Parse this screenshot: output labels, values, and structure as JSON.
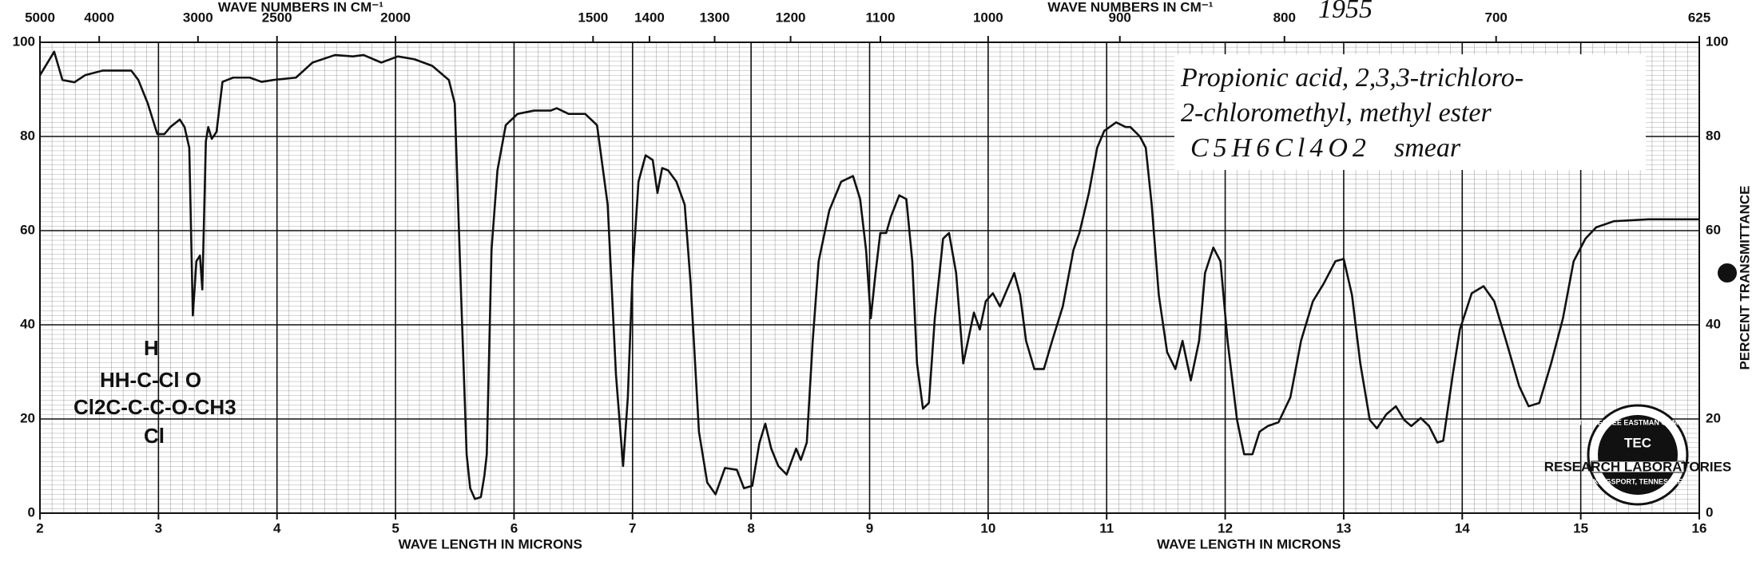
{
  "chart_data": {
    "type": "line",
    "xlabel": "WAVE LENGTH IN MICRONS",
    "ylabel": "PERCENT TRANSMITTANCE",
    "top_axis": {
      "label": "WAVE NUMBERS IN CM⁻¹",
      "ticks": [
        5000,
        4000,
        3000,
        2500,
        2000,
        1500,
        1400,
        1300,
        1200,
        1100,
        1000,
        900,
        800,
        700,
        625
      ]
    },
    "xlim": [
      2,
      16
    ],
    "ylim": [
      0,
      100
    ],
    "xticks": [
      2,
      3,
      4,
      5,
      6,
      7,
      8,
      9,
      10,
      11,
      12,
      13,
      14,
      15,
      16
    ],
    "yticks": [
      0,
      20,
      40,
      60,
      80,
      100
    ],
    "grid": true,
    "color": "#111111",
    "x": [
      2.0,
      2.12,
      2.19,
      2.29,
      2.38,
      2.53,
      2.77,
      2.83,
      2.91,
      2.99,
      3.05,
      3.1,
      3.18,
      3.22,
      3.26,
      3.29,
      3.32,
      3.35,
      3.37,
      3.4,
      3.42,
      3.45,
      3.49,
      3.54,
      3.63,
      3.77,
      3.87,
      3.97,
      4.16,
      4.3,
      4.49,
      4.64,
      4.73,
      4.88,
      5.02,
      5.16,
      5.31,
      5.45,
      5.5,
      5.55,
      5.6,
      5.63,
      5.67,
      5.72,
      5.75,
      5.77,
      5.81,
      5.86,
      5.93,
      6.03,
      6.17,
      6.31,
      6.36,
      6.46,
      6.6,
      6.7,
      6.79,
      6.86,
      6.92,
      6.96,
      7.0,
      7.05,
      7.11,
      7.17,
      7.21,
      7.25,
      7.3,
      7.37,
      7.44,
      7.49,
      7.56,
      7.63,
      7.7,
      7.78,
      7.88,
      7.94,
      8.01,
      8.07,
      8.12,
      8.17,
      8.23,
      8.3,
      8.38,
      8.42,
      8.47,
      8.52,
      8.57,
      8.66,
      8.76,
      8.86,
      8.92,
      8.97,
      9.01,
      9.05,
      9.09,
      9.14,
      9.18,
      9.25,
      9.31,
      9.36,
      9.4,
      9.45,
      9.5,
      9.55,
      9.62,
      9.67,
      9.73,
      9.79,
      9.83,
      9.88,
      9.93,
      9.98,
      10.04,
      10.1,
      10.16,
      10.22,
      10.27,
      10.32,
      10.39,
      10.47,
      10.54,
      10.63,
      10.72,
      10.77,
      10.85,
      10.92,
      10.98,
      11.08,
      11.16,
      11.2,
      11.28,
      11.33,
      11.38,
      11.44,
      11.51,
      11.58,
      11.64,
      11.67,
      11.71,
      11.78,
      11.83,
      11.9,
      11.96,
      12.02,
      12.1,
      12.16,
      12.23,
      12.29,
      12.36,
      12.45,
      12.55,
      12.64,
      12.74,
      12.83,
      12.93,
      13.0,
      13.07,
      13.14,
      13.22,
      13.28,
      13.36,
      13.44,
      13.51,
      13.57,
      13.65,
      13.72,
      13.79,
      13.84,
      13.92,
      13.98,
      14.08,
      14.18,
      14.27,
      14.37,
      14.48,
      14.56,
      14.65,
      14.75,
      14.85,
      14.94,
      15.04,
      15.13,
      15.28,
      15.57,
      16.0
    ],
    "values": [
      93,
      98,
      92,
      91.5,
      93,
      94,
      94,
      92,
      87,
      80.5,
      80.5,
      82,
      83.6,
      82,
      77.6,
      42,
      53.5,
      54.7,
      47.5,
      79,
      82,
      79.5,
      81,
      91.6,
      92.5,
      92.5,
      91.6,
      92,
      92.5,
      95.7,
      97.3,
      97,
      97.3,
      95.7,
      97,
      96.4,
      95,
      92,
      87,
      48.7,
      12.5,
      5.3,
      3,
      3.4,
      8,
      12.5,
      55.9,
      72.8,
      82.4,
      84.8,
      85.5,
      85.5,
      86,
      84.8,
      84.8,
      82.4,
      65.5,
      29.4,
      10,
      24.6,
      51,
      70.4,
      76,
      75,
      68,
      73.3,
      72.8,
      70.4,
      65.5,
      48.7,
      17.3,
      6.5,
      4,
      9.6,
      9.2,
      5.3,
      5.8,
      14.9,
      19,
      13.7,
      10,
      8.2,
      13.7,
      11.3,
      15,
      36.6,
      53.5,
      64.3,
      70.4,
      71.6,
      66.7,
      55.9,
      41.4,
      51,
      59.5,
      59.5,
      63,
      67.5,
      66.7,
      53.5,
      31.8,
      22.2,
      23.4,
      41.4,
      58.3,
      59.5,
      51,
      31.8,
      36.6,
      42.6,
      39,
      45,
      46.7,
      43.9,
      47.5,
      51,
      46.3,
      36.6,
      30.6,
      30.6,
      36.6,
      43.9,
      55.9,
      59.5,
      68,
      77.6,
      81.2,
      83,
      82,
      82,
      80,
      77.6,
      65.5,
      46.3,
      34.2,
      30.6,
      36.6,
      33,
      28.2,
      36.6,
      51,
      56.4,
      53.5,
      36.6,
      19.8,
      12.5,
      12.5,
      17.3,
      18.5,
      19.3,
      24.6,
      36.6,
      45,
      48.7,
      53.5,
      54,
      46.3,
      31.8,
      19.8,
      18,
      21,
      22.7,
      19.8,
      18.5,
      20.2,
      18.5,
      15,
      15.4,
      29.4,
      39,
      46.7,
      48.2,
      45,
      36.6,
      27,
      22.7,
      23.4,
      31.8,
      41.4,
      53.5,
      58.3,
      60.7,
      62,
      62.4,
      62.4
    ],
    "annotations": {
      "name_line1": "Propionic acid, 2,3,3-trichloro-",
      "name_line2": "2-chloromethyl, methyl ester",
      "formula": "C5H6Cl4O2",
      "note": "smear",
      "year": "1955",
      "structure": [
        "H",
        "HH-C-Cl O",
        "Cl2C-C-C-O-CH3",
        "Cl"
      ]
    },
    "logo": {
      "mark": "TEC",
      "top": "TENNESSEE EASTMAN COMPANY",
      "middle": "RESEARCH LABORATORIES",
      "bottom": "KINGSPORT, TENNESSEE"
    }
  }
}
